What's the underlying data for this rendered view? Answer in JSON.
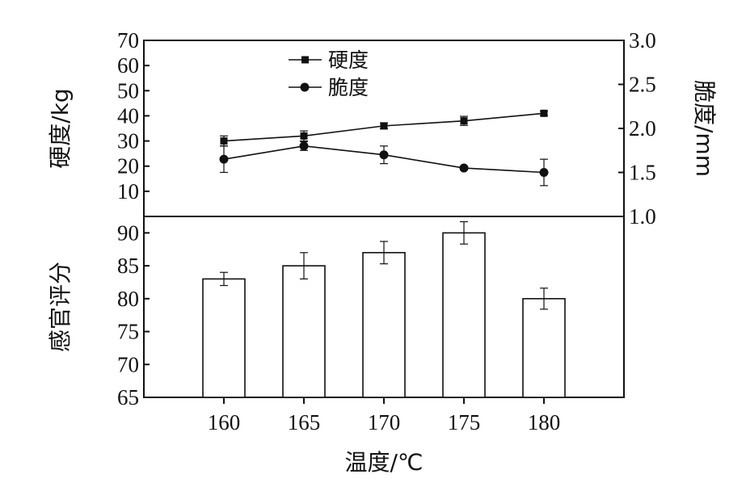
{
  "chart_data": [
    {
      "type": "line",
      "x": [
        160,
        165,
        170,
        175,
        180
      ],
      "series": [
        {
          "name": "硬度",
          "axis": "left",
          "marker": "square",
          "values": [
            30,
            32,
            36,
            38,
            41
          ],
          "errors": [
            2,
            2,
            1.2,
            1.8,
            0.8
          ]
        },
        {
          "name": "脆度",
          "axis": "right",
          "marker": "circle",
          "values": [
            1.65,
            1.8,
            1.7,
            1.55,
            1.5
          ],
          "errors": [
            0.15,
            0.05,
            0.1,
            0.02,
            0.15
          ]
        }
      ],
      "ylabel": "硬度/kg",
      "ylabel_right": "脆度/mm",
      "ylim": [
        0,
        70
      ],
      "ylim_right": [
        1.0,
        3.0
      ],
      "yticks": [
        "10",
        "20",
        "30",
        "40",
        "50",
        "60",
        "70"
      ],
      "yticks_right": [
        "1.0",
        "1.5",
        "2.0",
        "2.5",
        "3.0"
      ],
      "grid": false,
      "legend": "top-center"
    },
    {
      "type": "bar",
      "categories": [
        "160",
        "165",
        "170",
        "175",
        "180"
      ],
      "values": [
        83,
        85,
        87,
        90,
        80
      ],
      "errors": [
        1,
        2,
        1.7,
        1.7,
        1.6
      ],
      "ylabel": "感官评分",
      "ylim": [
        65,
        92.5
      ],
      "yticks": [
        "65",
        "70",
        "75",
        "80",
        "85",
        "90"
      ],
      "xlabel": "温度/℃",
      "grid": false
    }
  ],
  "colors": {
    "ink": "#111111",
    "bar_fill": "#ffffff"
  }
}
